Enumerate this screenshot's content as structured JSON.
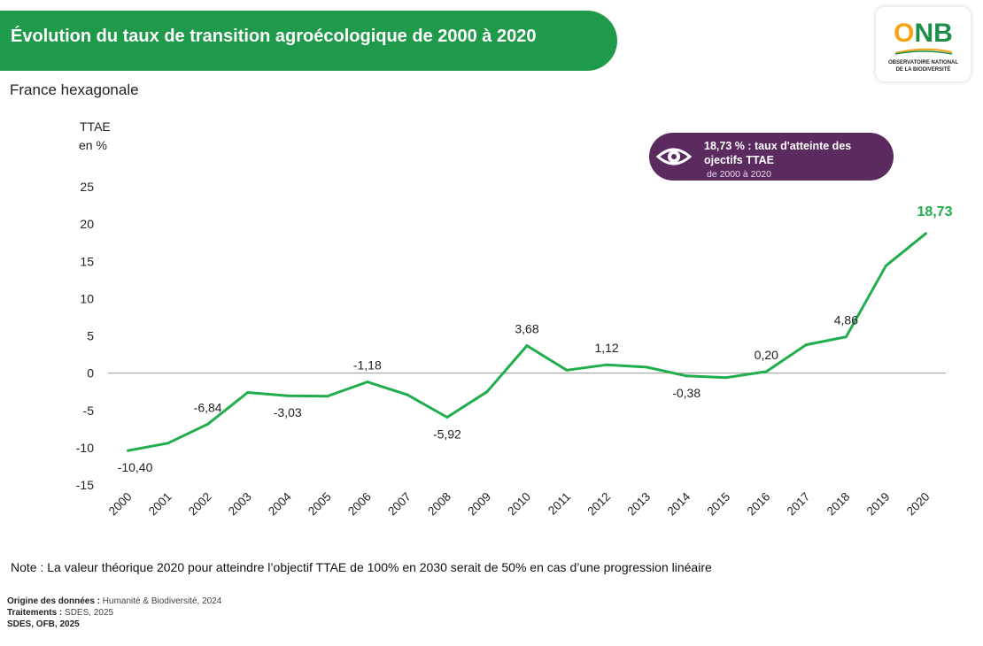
{
  "header": {
    "title": "Évolution du taux de transition agroécologique de 2000 à 2020",
    "subtitle": "France hexagonale"
  },
  "logo": {
    "o": "O",
    "nb": "NB",
    "line1": "OBSERVATOIRE NATIONAL",
    "line2": "DE LA BIODIVERSITÉ"
  },
  "axis": {
    "ylabel_line1": "TTAE",
    "ylabel_line2": "en %"
  },
  "callout": {
    "icon": "eye-icon",
    "line1": "18,73 % : taux d'atteinte des",
    "line2": "ojectifs TTAE",
    "line3": "de  2000 à 2020"
  },
  "colors": {
    "line": "#1fae4b",
    "banner": "#1e9a4a",
    "callout": "#5b2a5e"
  },
  "chart_data": {
    "type": "line",
    "x": [
      "2000",
      "2001",
      "2002",
      "2003",
      "2004",
      "2005",
      "2006",
      "2007",
      "2008",
      "2009",
      "2010",
      "2011",
      "2012",
      "2013",
      "2014",
      "2015",
      "2016",
      "2017",
      "2018",
      "2019",
      "2020"
    ],
    "series": [
      {
        "values": [
          -10.4,
          -9.4,
          -6.84,
          -2.6,
          -3.03,
          -3.1,
          -1.18,
          -2.9,
          -5.92,
          -2.5,
          3.68,
          0.4,
          1.12,
          0.8,
          -0.38,
          -0.6,
          0.2,
          3.8,
          4.86,
          14.4,
          18.73
        ]
      }
    ],
    "data_labels": [
      {
        "index": 0,
        "text": "-10,40"
      },
      {
        "index": 2,
        "text": "-6,84"
      },
      {
        "index": 4,
        "text": "-3,03"
      },
      {
        "index": 6,
        "text": "-1,18"
      },
      {
        "index": 8,
        "text": "-5,92"
      },
      {
        "index": 10,
        "text": "3,68"
      },
      {
        "index": 12,
        "text": "1,12"
      },
      {
        "index": 14,
        "text": "-0,38"
      },
      {
        "index": 16,
        "text": "0,20"
      },
      {
        "index": 18,
        "text": "4,86"
      },
      {
        "index": 20,
        "text": "18,73"
      }
    ],
    "yticks": [
      25,
      20,
      15,
      10,
      5,
      0,
      -5,
      -10,
      -15
    ],
    "ylim": [
      -15,
      25
    ],
    "grid": false,
    "zero_line": true
  },
  "note": "Note  : La valeur théorique 2020 pour atteindre l’objectif TTAE de 100% en 2030 serait de 50% en cas d’une progression linéaire",
  "source": {
    "origin_label": "Origine des données :",
    "origin_value": " Humanité & Biodiversité, 2024",
    "treatment_label": "Traitements :",
    "treatment_value": " SDES, 2025",
    "credit": "SDES, OFB, 2025"
  }
}
